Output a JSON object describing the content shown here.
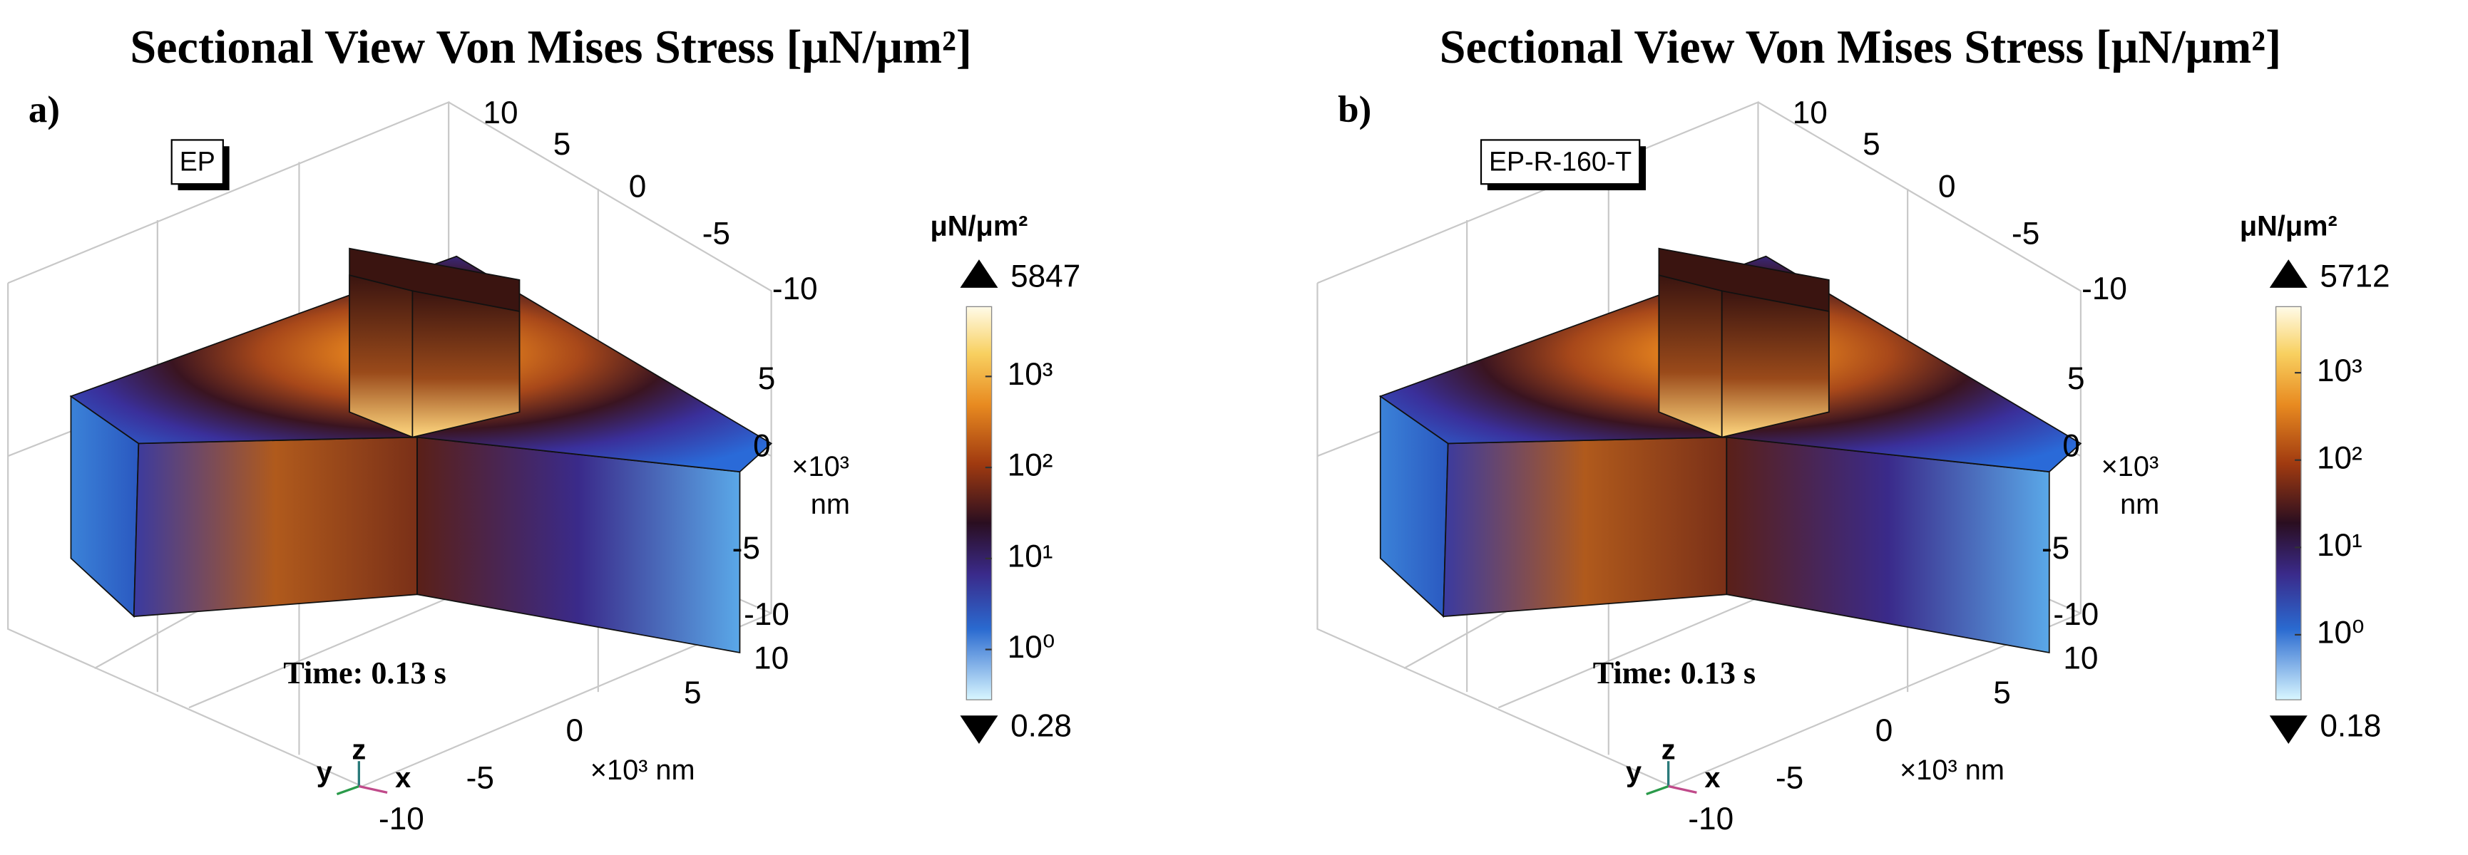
{
  "panels": [
    {
      "title": "Sectional View Von Mises Stress [μN/μm²]",
      "label": "a)",
      "tag": "EP",
      "time": "Time: 0.13 s",
      "colorbar": {
        "unit": "μN/μm²",
        "max": 5847,
        "min": 0.28,
        "ticks": [
          {
            "value": 1000,
            "label": "10³"
          },
          {
            "value": 100,
            "label": "10²"
          },
          {
            "value": 10,
            "label": "10¹"
          },
          {
            "value": 1,
            "label": "10⁰"
          }
        ]
      },
      "back_axis_ticks": [
        "10",
        "5",
        "0",
        "-5",
        "-10"
      ],
      "z_axis_ticks": [
        "5",
        "0",
        "-5",
        "-10"
      ],
      "z_axis_unit": [
        "×10³",
        "nm"
      ],
      "front_axis_ticks": [
        "10",
        "5",
        "0",
        "-5",
        "-10"
      ],
      "front_axis_unit": "×10³ nm",
      "triad": [
        "y",
        "z",
        "x"
      ]
    },
    {
      "title": "Sectional View Von Mises Stress [μN/μm²]",
      "label": "b)",
      "tag": "EP-R-160-T",
      "time": "Time: 0.13 s",
      "colorbar": {
        "unit": "μN/μm²",
        "max": 5712,
        "min": 0.18,
        "ticks": [
          {
            "value": 1000,
            "label": "10³"
          },
          {
            "value": 100,
            "label": "10²"
          },
          {
            "value": 10,
            "label": "10¹"
          },
          {
            "value": 1,
            "label": "10⁰"
          }
        ]
      },
      "back_axis_ticks": [
        "10",
        "5",
        "0",
        "-5",
        "-10"
      ],
      "z_axis_ticks": [
        "5",
        "0",
        "-5",
        "-10"
      ],
      "z_axis_unit": [
        "×10³",
        "nm"
      ],
      "front_axis_ticks": [
        "10",
        "5",
        "0",
        "-5",
        "-10"
      ],
      "front_axis_unit": "×10³ nm",
      "triad": [
        "y",
        "z",
        "x"
      ]
    }
  ]
}
